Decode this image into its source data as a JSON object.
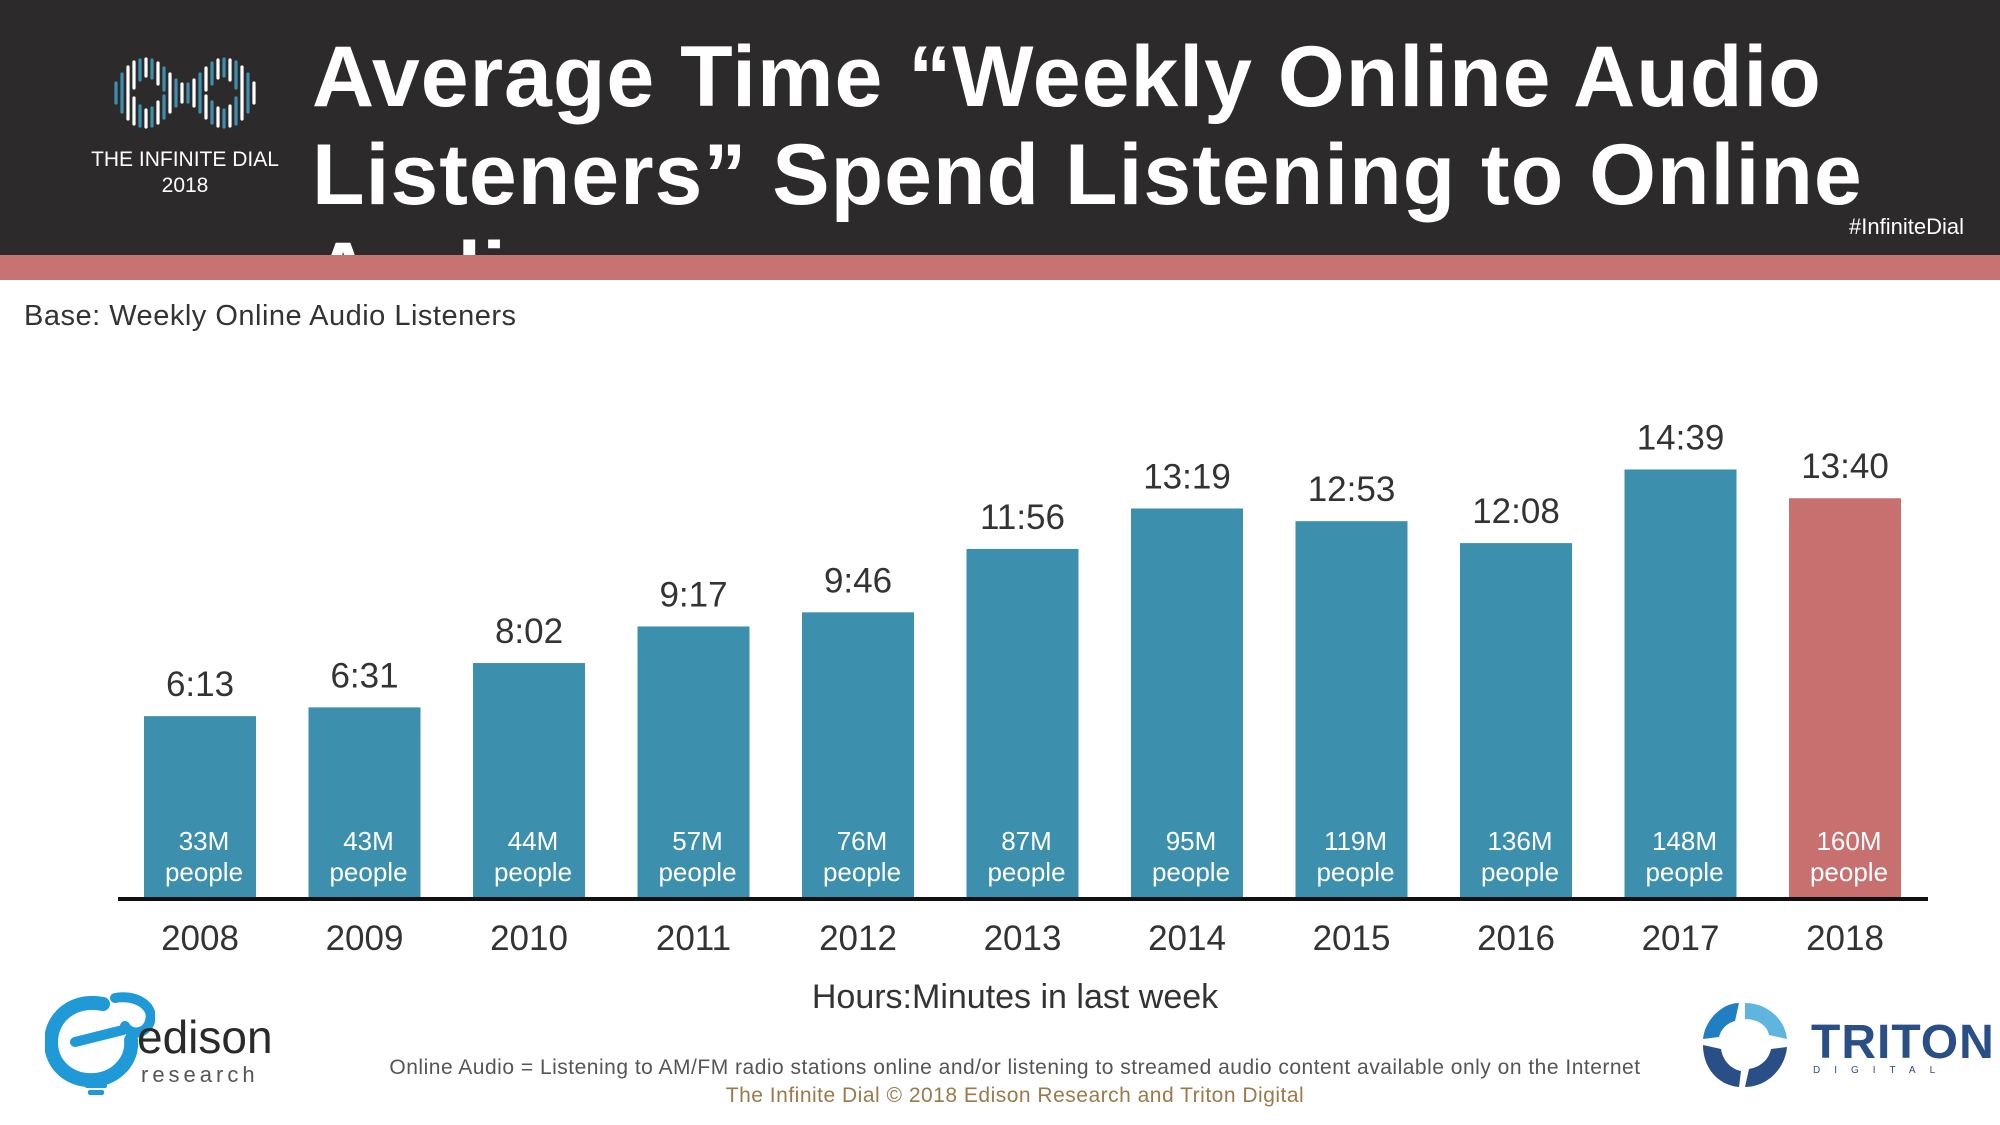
{
  "header": {
    "logo_line1": "THE INFINITE DIAL",
    "logo_line2": "2018",
    "title_line1": "Average Time “Weekly Online Audio",
    "title_line2": "Listeners” Spend Listening to Online Audio",
    "hashtag": "#InfiniteDial"
  },
  "base_label": "Base: Weekly Online Audio Listeners",
  "colors": {
    "header_bg": "#2d2a2b",
    "accent_stripe": "#c77373",
    "bar": "#3d8fae",
    "bar_highlight": "#c87070"
  },
  "chart_data": {
    "type": "bar",
    "xlabel": "Hours:Minutes in last week",
    "ylabel": "",
    "categories": [
      "2008",
      "2009",
      "2010",
      "2011",
      "2012",
      "2013",
      "2014",
      "2015",
      "2016",
      "2017",
      "2018"
    ],
    "values": [
      6.217,
      6.517,
      8.033,
      9.283,
      9.767,
      11.933,
      13.317,
      12.883,
      12.133,
      14.65,
      13.667
    ],
    "value_labels": [
      "6:13",
      "6:31",
      "8:02",
      "9:17",
      "9:46",
      "11:56",
      "13:19",
      "12:53",
      "12:08",
      "14:39",
      "13:40"
    ],
    "people_labels": [
      "33M",
      "43M",
      "44M",
      "57M",
      "76M",
      "87M",
      "95M",
      "119M",
      "136M",
      "148M",
      "160M"
    ],
    "people_suffix": "people",
    "highlight_index": 10,
    "ylim": [
      0,
      16
    ],
    "grid": false,
    "legend": "none"
  },
  "footer": {
    "definition": "Online Audio = Listening to AM/FM radio stations online and/or listening to streamed audio content available only on the Internet",
    "copyright": "The Infinite Dial   © 2018 Edison Research and Triton Digital"
  },
  "logos": {
    "edison_word": "edison",
    "edison_sub": "research",
    "triton_word": "TRITON",
    "triton_sub": "DIGITAL"
  }
}
